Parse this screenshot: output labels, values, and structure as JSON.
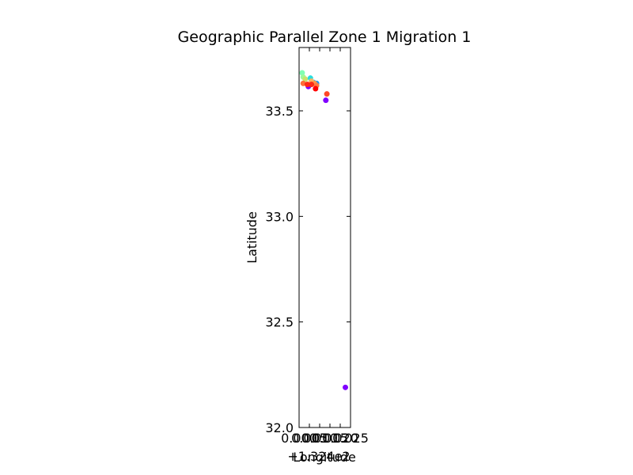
{
  "chart_data": {
    "type": "scatter",
    "title": "Geographic Parallel Zone 1 Migration 1",
    "xlabel": "Longitude",
    "ylabel": "Latitude",
    "x_offset_label": "+1.324e2",
    "xlim": [
      0.0,
      0.025
    ],
    "ylim": [
      32.0,
      33.8
    ],
    "x_ticks": [
      0.0,
      0.005,
      0.01,
      0.015,
      0.02,
      0.025
    ],
    "x_tick_labels": [
      "0.000",
      "0.005",
      "0.010",
      "0.015",
      "0.020",
      "0.025"
    ],
    "y_ticks": [
      32.0,
      32.5,
      33.0,
      33.5
    ],
    "y_tick_labels": [
      "32.0",
      "32.5",
      "33.0",
      "33.5"
    ],
    "grid": false,
    "colormap": "rainbow",
    "points": [
      {
        "x": 0.0015,
        "y": 33.68,
        "color": "#80ffb4"
      },
      {
        "x": 0.002,
        "y": 33.66,
        "color": "#9bfa9b"
      },
      {
        "x": 0.003,
        "y": 33.65,
        "color": "#c8e36c"
      },
      {
        "x": 0.0055,
        "y": 33.655,
        "color": "#2adddd"
      },
      {
        "x": 0.007,
        "y": 33.635,
        "color": "#40c0ea"
      },
      {
        "x": 0.0085,
        "y": 33.63,
        "color": "#1996f3"
      },
      {
        "x": 0.006,
        "y": 33.64,
        "color": "#ffb360"
      },
      {
        "x": 0.0075,
        "y": 33.63,
        "color": "#ff9549"
      },
      {
        "x": 0.002,
        "y": 33.63,
        "color": "#ff6d38"
      },
      {
        "x": 0.0085,
        "y": 33.62,
        "color": "#ff7a3f"
      },
      {
        "x": 0.0045,
        "y": 33.615,
        "color": "#8000ff"
      },
      {
        "x": 0.004,
        "y": 33.625,
        "color": "#ff2a15"
      },
      {
        "x": 0.006,
        "y": 33.625,
        "color": "#ff2a15"
      },
      {
        "x": 0.008,
        "y": 33.605,
        "color": "#ff0000"
      },
      {
        "x": 0.0135,
        "y": 33.58,
        "color": "#ff4626"
      },
      {
        "x": 0.013,
        "y": 33.55,
        "color": "#8000ff"
      },
      {
        "x": 0.0225,
        "y": 32.19,
        "color": "#8000ff"
      }
    ]
  }
}
